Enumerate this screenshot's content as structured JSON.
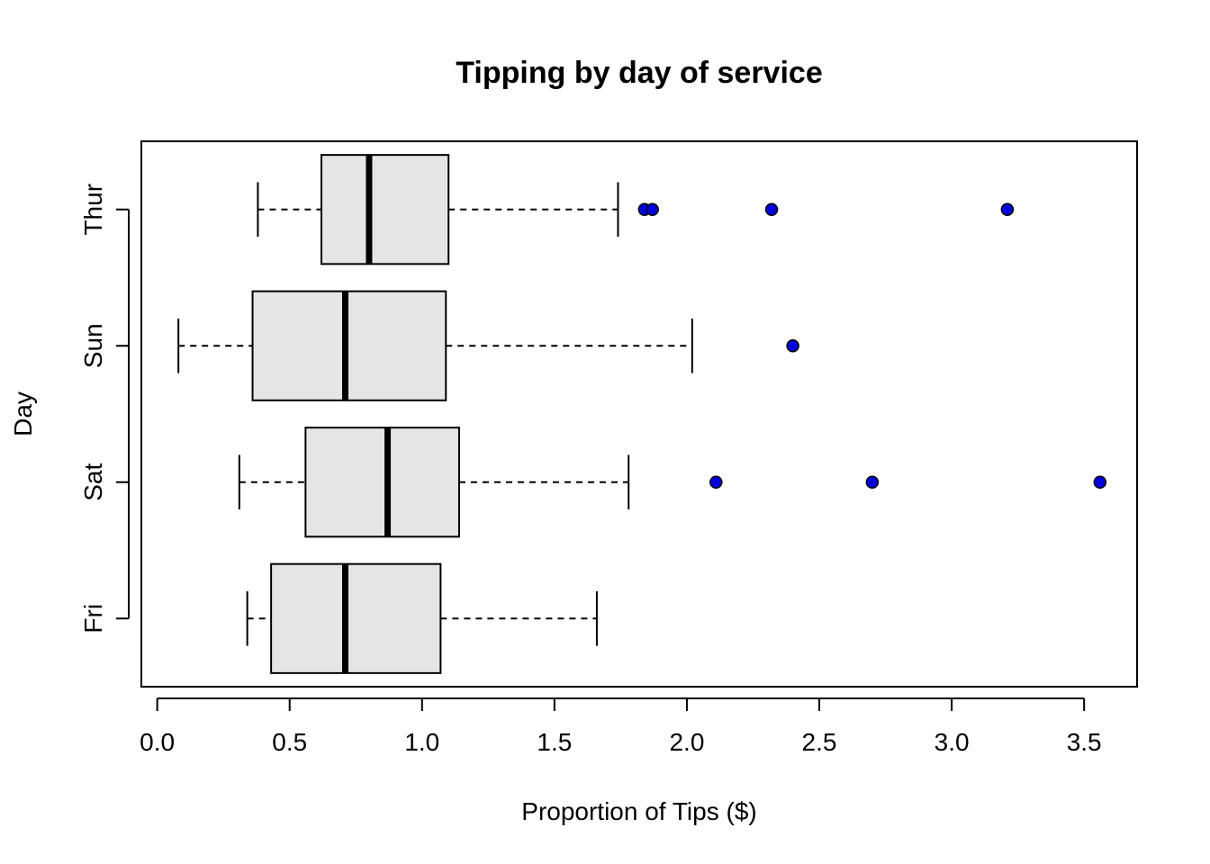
{
  "chart_data": {
    "type": "boxplot",
    "orientation": "horizontal",
    "title": "Tipping by day of service",
    "xlabel": "Proportion of Tips ($)",
    "ylabel": "Day",
    "xlim": [
      -0.06,
      3.7
    ],
    "x_ticks": [
      "0.0",
      "0.5",
      "1.0",
      "1.5",
      "2.0",
      "2.5",
      "3.0",
      "3.5"
    ],
    "categories": [
      "Fri",
      "Sat",
      "Sun",
      "Thur"
    ],
    "box_fill": "#e5e5e5",
    "outlier_color": "#0000dd",
    "grid": false,
    "boxes": [
      {
        "category": "Fri",
        "whisker_low": 0.34,
        "q1": 0.43,
        "median": 0.71,
        "q3": 1.07,
        "whisker_high": 1.66,
        "outliers": []
      },
      {
        "category": "Sat",
        "whisker_low": 0.31,
        "q1": 0.56,
        "median": 0.87,
        "q3": 1.14,
        "whisker_high": 1.78,
        "outliers": [
          2.11,
          2.7,
          3.56
        ]
      },
      {
        "category": "Sun",
        "whisker_low": 0.08,
        "q1": 0.36,
        "median": 0.71,
        "q3": 1.09,
        "whisker_high": 2.02,
        "outliers": [
          2.4
        ]
      },
      {
        "category": "Thur",
        "whisker_low": 0.38,
        "q1": 0.62,
        "median": 0.8,
        "q3": 1.1,
        "whisker_high": 1.74,
        "outliers": [
          1.84,
          1.87,
          2.32,
          3.21
        ]
      }
    ]
  }
}
